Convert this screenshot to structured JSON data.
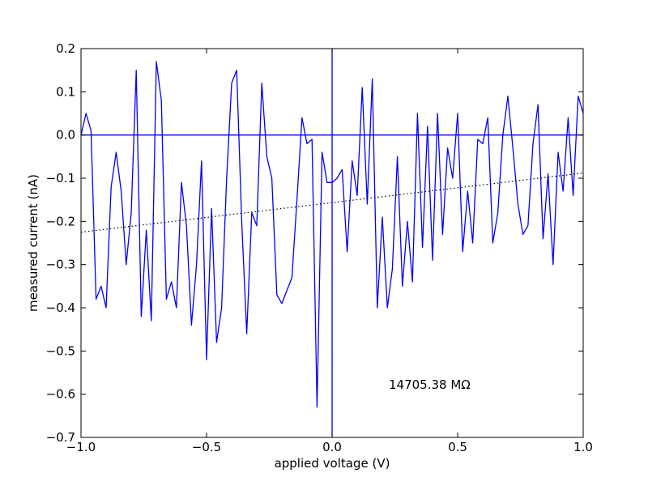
{
  "chart_data": {
    "type": "line",
    "xlabel": "applied voltage (V)",
    "ylabel": "measured current (nA)",
    "xlim": [
      -1.0,
      1.0
    ],
    "ylim": [
      -0.7,
      0.2
    ],
    "x_ticks": [
      -1.0,
      -0.5,
      0.0,
      0.5,
      1.0
    ],
    "x_tick_labels": [
      "−1.0",
      "−0.5",
      "0.0",
      "0.5",
      "1.0"
    ],
    "y_ticks": [
      0.2,
      0.1,
      0.0,
      -0.1,
      -0.2,
      -0.3,
      -0.4,
      -0.5,
      -0.6,
      -0.7
    ],
    "y_tick_labels": [
      "0.2",
      "0.1",
      "0.0",
      "−0.1",
      "−0.2",
      "−0.3",
      "−0.4",
      "−0.5",
      "−0.6",
      "−0.7"
    ],
    "grid": false,
    "annotation": "14705.38 MΩ",
    "colors": {
      "data": "#0000ff",
      "fit": "#000000",
      "axes": "#000000"
    },
    "series": [
      {
        "style": "solid",
        "x": [
          -1.0,
          -0.98,
          -0.96,
          -0.94,
          -0.92,
          -0.9,
          -0.88,
          -0.86,
          -0.84,
          -0.82,
          -0.8,
          -0.78,
          -0.76,
          -0.74,
          -0.72,
          -0.7,
          -0.68,
          -0.66,
          -0.64,
          -0.62,
          -0.6,
          -0.58,
          -0.56,
          -0.54,
          -0.52,
          -0.5,
          -0.48,
          -0.46,
          -0.44,
          -0.42,
          -0.4,
          -0.38,
          -0.36,
          -0.34,
          -0.32,
          -0.3,
          -0.28,
          -0.26,
          -0.24,
          -0.22,
          -0.2,
          -0.18,
          -0.16,
          -0.14,
          -0.12,
          -0.1,
          -0.08,
          -0.06,
          -0.04,
          -0.02,
          0.0,
          0.02,
          0.04,
          0.06,
          0.08,
          0.1,
          0.12,
          0.14,
          0.16,
          0.18,
          0.2,
          0.22,
          0.24,
          0.26,
          0.28,
          0.3,
          0.32,
          0.34,
          0.36,
          0.38,
          0.4,
          0.42,
          0.44,
          0.46,
          0.48,
          0.5,
          0.52,
          0.54,
          0.56,
          0.58,
          0.6,
          0.62,
          0.64,
          0.66,
          0.68,
          0.7,
          0.72,
          0.74,
          0.76,
          0.78,
          0.8,
          0.82,
          0.84,
          0.86,
          0.88,
          0.9,
          0.92,
          0.94,
          0.96,
          0.98,
          1.0
        ],
        "y": [
          0.0,
          0.05,
          0.01,
          -0.38,
          -0.35,
          -0.4,
          -0.12,
          -0.04,
          -0.13,
          -0.3,
          -0.18,
          0.15,
          -0.42,
          -0.22,
          -0.43,
          0.17,
          0.08,
          -0.38,
          -0.34,
          -0.4,
          -0.11,
          -0.21,
          -0.44,
          -0.3,
          -0.06,
          -0.52,
          -0.17,
          -0.48,
          -0.4,
          -0.1,
          0.12,
          0.15,
          -0.2,
          -0.46,
          -0.18,
          -0.21,
          0.12,
          -0.05,
          -0.1,
          -0.37,
          -0.39,
          -0.36,
          -0.33,
          -0.15,
          0.04,
          -0.02,
          -0.01,
          -0.63,
          -0.04,
          -0.11,
          -0.11,
          -0.1,
          -0.08,
          -0.27,
          -0.06,
          -0.14,
          0.11,
          -0.16,
          0.13,
          -0.4,
          -0.19,
          -0.4,
          -0.31,
          -0.05,
          -0.35,
          -0.2,
          -0.34,
          0.05,
          -0.26,
          0.02,
          -0.29,
          0.05,
          -0.23,
          -0.03,
          -0.1,
          0.05,
          -0.27,
          -0.13,
          -0.25,
          -0.01,
          -0.02,
          0.04,
          -0.25,
          -0.18,
          0.0,
          0.09,
          -0.03,
          -0.16,
          -0.23,
          -0.21,
          -0.02,
          0.07,
          -0.24,
          -0.09,
          -0.3,
          -0.04,
          -0.13,
          0.04,
          -0.14,
          0.09,
          0.05
        ]
      },
      {
        "style": "dotted",
        "x": [
          -1.0,
          1.0
        ],
        "y": [
          -0.225,
          -0.088
        ]
      }
    ],
    "reference_lines": [
      {
        "orientation": "horizontal",
        "value": 0.0
      },
      {
        "orientation": "vertical",
        "value": 0.0
      }
    ]
  }
}
